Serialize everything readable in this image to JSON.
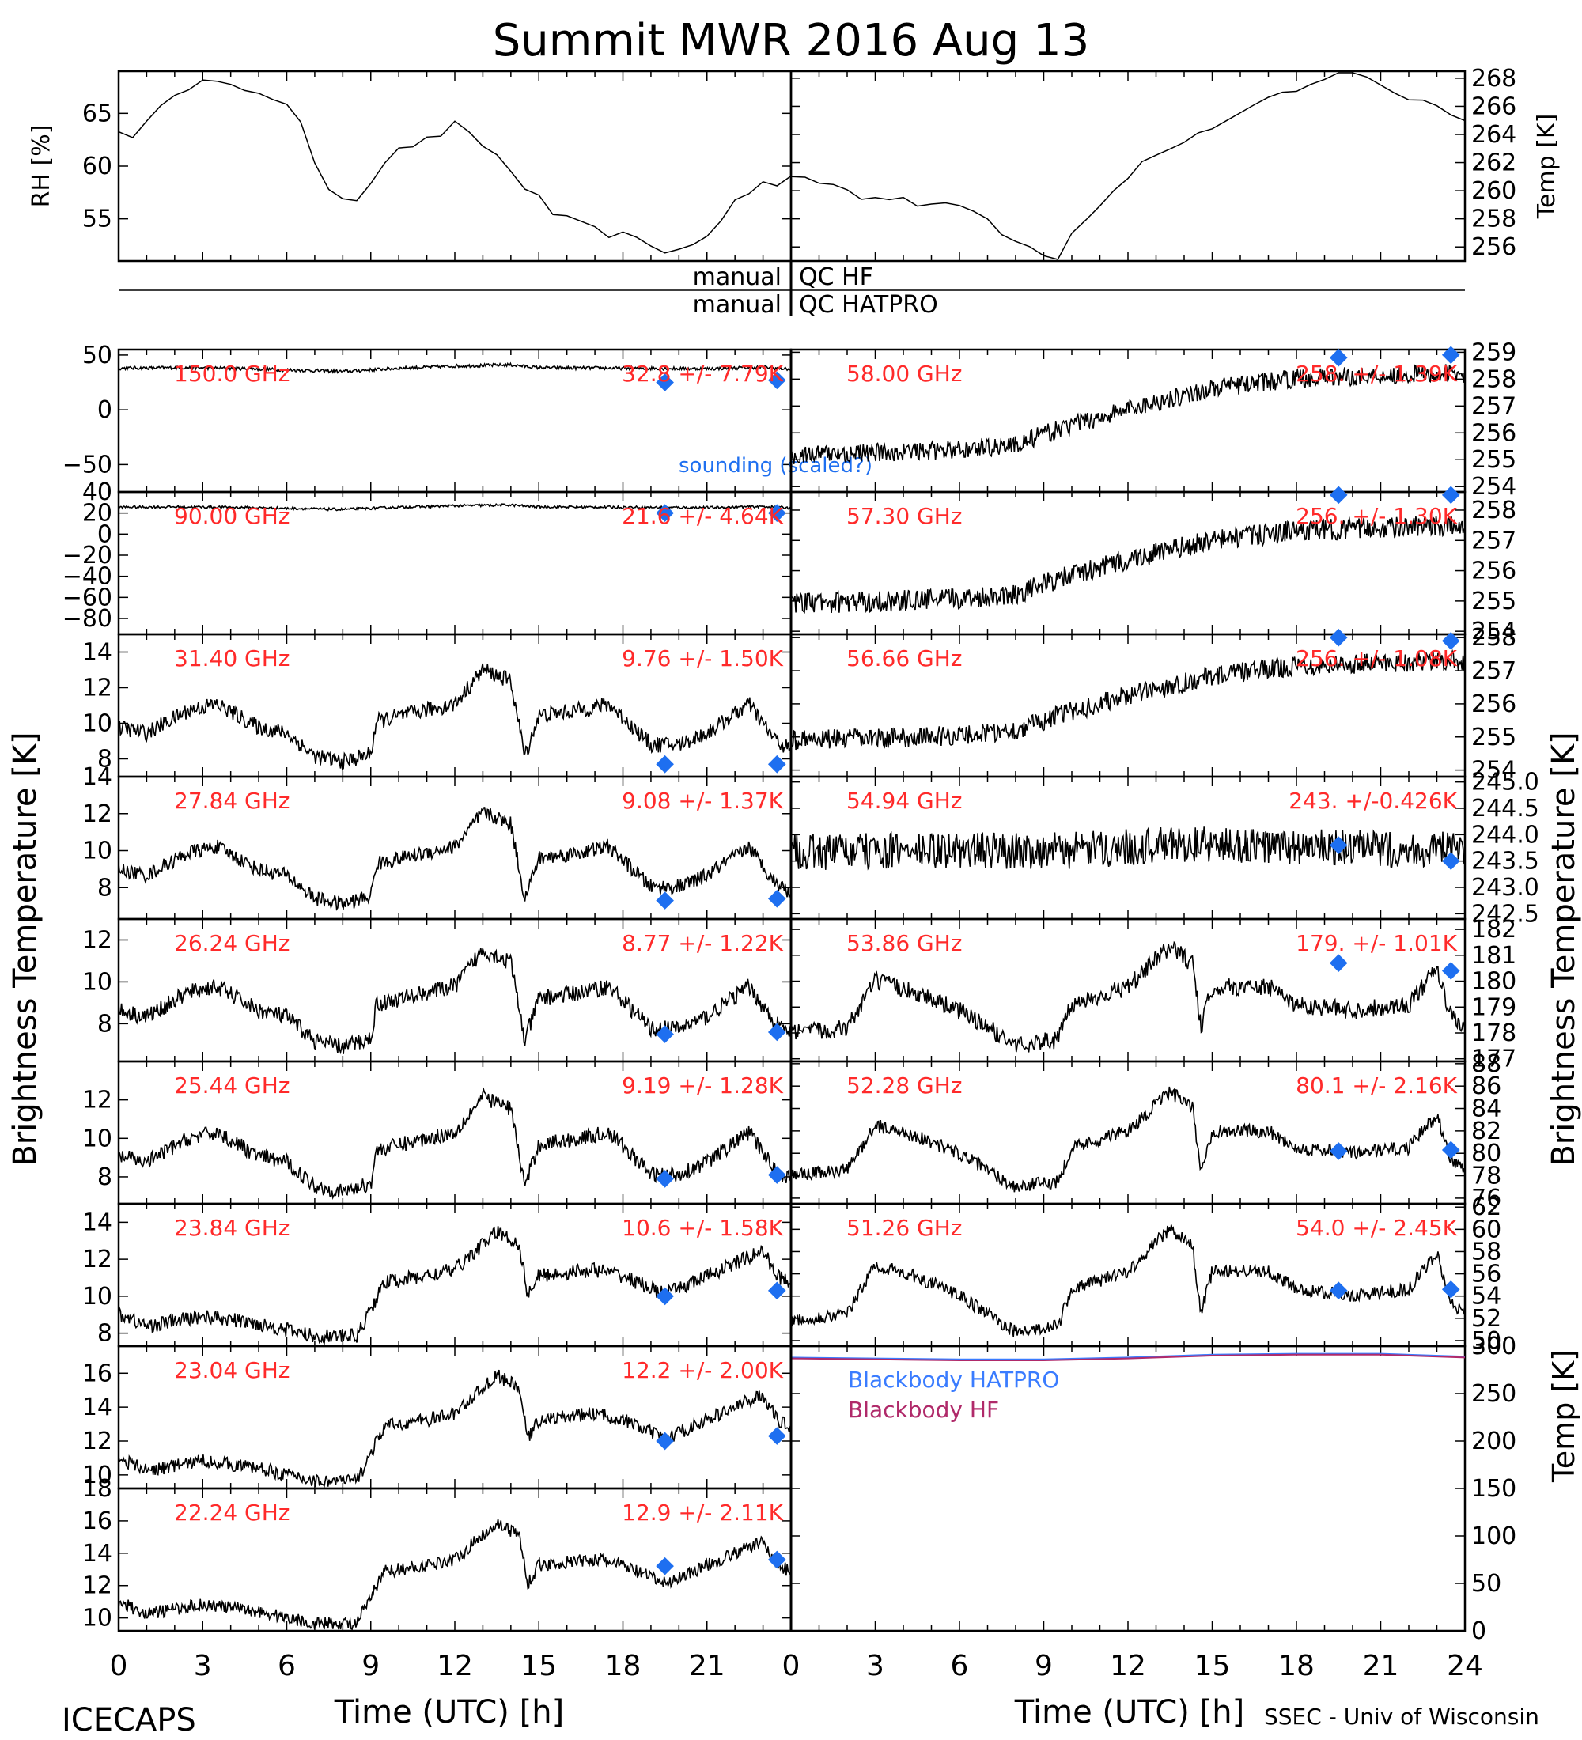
{
  "title": "Summit MWR 2016 Aug 13",
  "footer_left": "ICECAPS",
  "footer_right": "SSEC - Univ of Wisconsin",
  "colors": {
    "axis": "#000000",
    "trace": "#000000",
    "channel_label": "#ff2a2a",
    "sounding": "#1e6ff0",
    "bb_hatpro": "#3a7cff",
    "bb_hf": "#b02a6a"
  },
  "x_axis": {
    "label": "Time (UTC) [h]",
    "ticks": [
      0,
      3,
      6,
      9,
      12,
      15,
      18,
      21,
      24
    ],
    "tick_labels_left": [
      "0",
      "3",
      "6",
      "9",
      "12",
      "15",
      "18",
      "21"
    ],
    "tick_labels_right": [
      "0",
      "3",
      "6",
      "9",
      "12",
      "15",
      "18",
      "21",
      "24"
    ]
  },
  "left_axis_title": "Brightness Temperature [K]",
  "right_axis_title": "Brightness Temperature [K]",
  "qc": {
    "hf_left": "manual",
    "hf_right": "QC HF",
    "hatpro_left": "manual",
    "hatpro_right": "QC HATPRO"
  },
  "sounding_label": "sounding (scaled?)",
  "chart_data": [
    {
      "type": "line",
      "id": "rh",
      "ylabel": "RH [%]",
      "ylim": [
        51,
        69
      ],
      "yticks": [
        55,
        60,
        65
      ],
      "x": [
        0,
        0.5,
        1,
        1.5,
        2,
        2.5,
        3,
        3.5,
        4,
        4.5,
        5,
        5.5,
        6,
        6.5,
        7,
        7.5,
        8,
        8.5,
        9,
        9.5,
        10,
        10.5,
        11,
        11.5,
        12,
        12.5,
        13,
        13.5,
        14,
        14.5,
        15,
        15.5,
        16,
        16.5,
        17,
        17.5,
        18,
        18.5,
        19,
        19.5,
        20,
        20.5,
        21,
        21.5,
        22,
        22.5,
        23,
        23.5,
        24
      ],
      "values": [
        63.5,
        62.5,
        64,
        66,
        67,
        67.5,
        68,
        68,
        67.5,
        67,
        67,
        66.5,
        66,
        64,
        60,
        58,
        57,
        57,
        58.5,
        60.5,
        61.5,
        62,
        62.5,
        63,
        64,
        63,
        62,
        61,
        59.5,
        58,
        57,
        55.5,
        55,
        54.5,
        54,
        53.5,
        53.5,
        53,
        52.5,
        52,
        52,
        52.5,
        53.5,
        55,
        56.5,
        57.5,
        58.5,
        58,
        59
      ]
    },
    {
      "type": "line",
      "id": "temp",
      "ylabel": "Temp [K]",
      "ylim": [
        255,
        268.5
      ],
      "yticks": [
        256,
        258,
        260,
        262,
        264,
        266,
        268
      ],
      "x": [
        0,
        0.5,
        1,
        1.5,
        2,
        2.5,
        3,
        3.5,
        4,
        4.5,
        5,
        5.5,
        6,
        6.5,
        7,
        7.5,
        8,
        8.5,
        9,
        9.5,
        10,
        10.5,
        11,
        11.5,
        12,
        12.5,
        13,
        13.5,
        14,
        14.5,
        15,
        15.5,
        16,
        16.5,
        17,
        17.5,
        18,
        18.5,
        19,
        19.5,
        20,
        20.5,
        21,
        21.5,
        22,
        22.5,
        23,
        23.5,
        24
      ],
      "values": [
        261,
        261,
        260.5,
        260.5,
        260,
        259.5,
        259.5,
        259.5,
        259.5,
        259,
        259,
        259,
        259,
        258.5,
        258,
        257,
        256.5,
        256,
        255.5,
        255,
        257,
        258,
        259,
        260,
        261,
        262,
        262.5,
        263,
        263.5,
        264,
        264.5,
        265,
        265.5,
        266,
        266.5,
        267,
        267,
        267.5,
        268,
        268.5,
        268.5,
        268,
        267.5,
        267,
        266.5,
        266.5,
        266,
        265.5,
        265
      ]
    },
    {
      "type": "line",
      "id": "c150",
      "channel": "150.0 GHz",
      "stats": "32.8 +/- 7.79K",
      "ylim": [
        -75,
        55
      ],
      "yticks": [
        50,
        0,
        -50
      ],
      "tick_labels": [
        "50",
        "0",
        "−50"
      ],
      "profile": "hf150",
      "base": 33,
      "amp": 10,
      "noise": 1.5,
      "sounding": [
        [
          19.5,
          25
        ],
        [
          23.5,
          27
        ]
      ],
      "sounding_label": true
    },
    {
      "type": "line",
      "id": "c90",
      "channel": "90.00 GHz",
      "stats": "21.6 +/- 4.64K",
      "ylim": [
        -95,
        40
      ],
      "yticks": [
        40,
        20,
        0,
        -20,
        -40,
        -60,
        -80
      ],
      "tick_labels": [
        "40",
        "20",
        "0",
        "−20",
        "−40",
        "−60",
        "−80"
      ],
      "profile": "hf150",
      "base": 22,
      "amp": 7,
      "noise": 1.2,
      "sounding": [
        [
          19.5,
          20
        ],
        [
          23.5,
          20
        ]
      ]
    },
    {
      "type": "line",
      "id": "c3140",
      "channel": "31.40 GHz",
      "stats": "9.76 +/- 1.50K",
      "ylim": [
        7,
        15
      ],
      "yticks": [
        8,
        10,
        12,
        14
      ],
      "profile": "kband",
      "base": 7.5,
      "amp": 6.5,
      "noise": 0.45,
      "sounding": [
        [
          19.5,
          7.7
        ],
        [
          23.5,
          7.7
        ]
      ]
    },
    {
      "type": "line",
      "id": "c2784",
      "channel": "27.84 GHz",
      "stats": "9.08 +/- 1.37K",
      "ylim": [
        6.3,
        14
      ],
      "yticks": [
        8,
        10,
        12,
        14
      ],
      "profile": "kband",
      "base": 6.8,
      "amp": 6.2,
      "noise": 0.4,
      "sounding": [
        [
          19.5,
          7.3
        ],
        [
          23.5,
          7.4
        ]
      ]
    },
    {
      "type": "line",
      "id": "c2624",
      "channel": "26.24 GHz",
      "stats": "8.77 +/- 1.22K",
      "ylim": [
        6.2,
        13
      ],
      "yticks": [
        8,
        10,
        12
      ],
      "profile": "kband",
      "base": 6.6,
      "amp": 5.8,
      "noise": 0.4,
      "sounding": [
        [
          19.5,
          7.5
        ],
        [
          23.5,
          7.6
        ]
      ]
    },
    {
      "type": "line",
      "id": "c2544",
      "channel": "25.44 GHz",
      "stats": "9.19 +/- 1.28K",
      "ylim": [
        6.6,
        14
      ],
      "yticks": [
        8,
        10,
        12
      ],
      "profile": "kband",
      "base": 6.9,
      "amp": 6.2,
      "noise": 0.4,
      "sounding": [
        [
          19.5,
          7.9
        ],
        [
          23.5,
          8.1
        ]
      ]
    },
    {
      "type": "line",
      "id": "c2384",
      "channel": "23.84 GHz",
      "stats": "10.6 +/- 1.58K",
      "ylim": [
        7.3,
        15
      ],
      "yticks": [
        8,
        10,
        12,
        14
      ],
      "profile": "kband2",
      "base": 7.7,
      "amp": 6.8,
      "noise": 0.4,
      "sounding": [
        [
          19.5,
          10.0
        ],
        [
          23.5,
          10.3
        ]
      ]
    },
    {
      "type": "line",
      "id": "c2304",
      "channel": "23.04 GHz",
      "stats": "12.2 +/- 2.00K",
      "ylim": [
        9.2,
        17.6
      ],
      "yticks": [
        10,
        12,
        14,
        16
      ],
      "profile": "kband2",
      "base": 9.5,
      "amp": 7.5,
      "noise": 0.4,
      "sounding": [
        [
          19.5,
          12.0
        ],
        [
          23.5,
          12.3
        ]
      ]
    },
    {
      "type": "line",
      "id": "c2224",
      "channel": "22.24 GHz",
      "stats": "12.9 +/- 2.11K",
      "ylim": [
        9.2,
        18
      ],
      "yticks": [
        10,
        12,
        14,
        16,
        18
      ],
      "profile": "kband2",
      "base": 9.5,
      "amp": 7.5,
      "noise": 0.4,
      "sounding": [
        [
          19.5,
          13.2
        ],
        [
          23.5,
          13.6
        ]
      ]
    },
    {
      "type": "line",
      "id": "c5800",
      "channel": "58.00 GHz",
      "stats": "258. +/- 1.39K",
      "ylim": [
        253.8,
        259.1
      ],
      "yticks": [
        254,
        255,
        256,
        257,
        258,
        259
      ],
      "profile": "trend",
      "base": 254.8,
      "amp": 3.8,
      "noise": 0.35,
      "sounding": [
        [
          19.5,
          258.8
        ],
        [
          23.5,
          258.9
        ]
      ]
    },
    {
      "type": "line",
      "id": "c5730",
      "channel": "57.30 GHz",
      "stats": "256. +/- 1.30K",
      "ylim": [
        253.9,
        258.6
      ],
      "yticks": [
        254,
        255,
        256,
        257,
        258
      ],
      "profile": "trend",
      "base": 254.6,
      "amp": 3.2,
      "noise": 0.35,
      "sounding": [
        [
          19.5,
          258.5
        ],
        [
          23.5,
          258.5
        ]
      ]
    },
    {
      "type": "line",
      "id": "c5666",
      "channel": "56.66 GHz",
      "stats": "256. +/- 1.08K",
      "ylim": [
        253.8,
        258.1
      ],
      "yticks": [
        254,
        255,
        256,
        257,
        258
      ],
      "profile": "trend",
      "base": 254.6,
      "amp": 3.0,
      "noise": 0.3,
      "sounding": [
        [
          19.5,
          258.0
        ],
        [
          23.5,
          257.9
        ]
      ]
    },
    {
      "type": "line",
      "id": "c5494",
      "channel": "54.94 GHz",
      "stats": "243. +/-0.426K",
      "ylim": [
        242.4,
        245.1
      ],
      "yticks": [
        242.5,
        243.0,
        243.5,
        244.0,
        244.5,
        245.0
      ],
      "tick_labels": [
        "242.5",
        "243.0",
        "243.5",
        "244.0",
        "244.5",
        "245.0"
      ],
      "profile": "flat",
      "base": 243.4,
      "amp": 0.6,
      "noise": 0.35,
      "sounding": [
        [
          19.5,
          243.8
        ],
        [
          23.5,
          243.5
        ]
      ]
    },
    {
      "type": "line",
      "id": "c5386",
      "channel": "53.86 GHz",
      "stats": "179. +/- 1.01K",
      "ylim": [
        176.9,
        182.4
      ],
      "yticks": [
        177,
        178,
        179,
        180,
        181,
        182
      ],
      "profile": "oband",
      "base": 177.3,
      "amp": 4.5,
      "noise": 0.35,
      "sounding": [
        [
          19.5,
          180.7
        ],
        [
          23.5,
          180.4
        ]
      ]
    },
    {
      "type": "line",
      "id": "c5228",
      "channel": "52.28 GHz",
      "stats": "80.1 +/- 2.16K",
      "ylim": [
        75.5,
        88.2
      ],
      "yticks": [
        76,
        78,
        80,
        82,
        84,
        86,
        88
      ],
      "profile": "oband",
      "base": 76.5,
      "amp": 10,
      "noise": 0.6,
      "sounding": [
        [
          19.5,
          80.2
        ],
        [
          23.5,
          80.3
        ]
      ]
    },
    {
      "type": "line",
      "id": "c5126",
      "channel": "51.26 GHz",
      "stats": "54.0 +/- 2.45K",
      "ylim": [
        49.5,
        62.3
      ],
      "yticks": [
        50,
        52,
        54,
        56,
        58,
        60,
        62
      ],
      "profile": "oband",
      "base": 50.2,
      "amp": 11,
      "noise": 0.6,
      "sounding": [
        [
          19.5,
          54.5
        ],
        [
          23.5,
          54.6
        ]
      ]
    },
    {
      "type": "line",
      "id": "bb",
      "ylabel": "Temp [K]",
      "ylim": [
        0,
        300
      ],
      "yticks": [
        0,
        50,
        100,
        150,
        200,
        250,
        300
      ],
      "series": [
        {
          "name": "Blackbody HATPRO",
          "x": [
            0,
            3,
            6,
            9,
            12,
            15,
            18,
            21,
            24
          ],
          "values": [
            288,
            287,
            286,
            286,
            288,
            291,
            292,
            292,
            289
          ]
        },
        {
          "name": "Blackbody HF",
          "x": [
            0,
            3,
            6,
            9,
            12,
            15,
            18,
            21,
            24
          ],
          "values": [
            287,
            286,
            285,
            285,
            287,
            290,
            291,
            291,
            288
          ]
        }
      ]
    }
  ]
}
